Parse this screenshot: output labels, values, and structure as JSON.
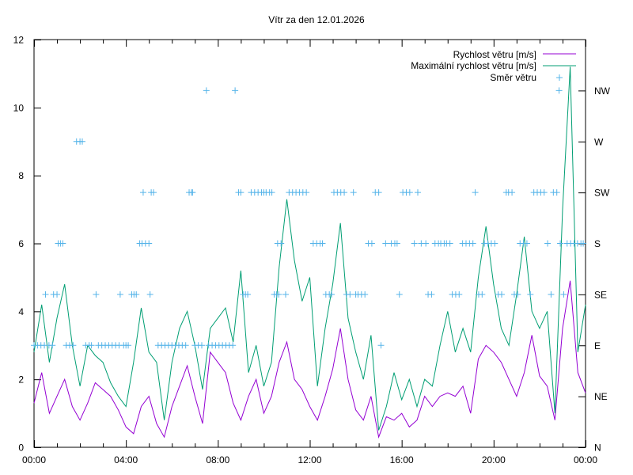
{
  "chart_data": {
    "type": "line",
    "title": "Vítr za den 12.01.2026",
    "xlabel": "",
    "ylabel": "",
    "xlim_hours": [
      0,
      24
    ],
    "ylim": [
      0,
      12
    ],
    "grid": false,
    "legend_placement": "top-right",
    "x_ticks": [
      "00:00",
      "04:00",
      "08:00",
      "12:00",
      "16:00",
      "20:00",
      "00:00"
    ],
    "x_tick_hours": [
      0,
      4,
      8,
      12,
      16,
      20,
      24
    ],
    "y_ticks": [
      "0",
      "2",
      "4",
      "6",
      "8",
      "10",
      "12"
    ],
    "y_tick_values": [
      0,
      2,
      4,
      6,
      8,
      10,
      12
    ],
    "y2_ticks": [
      "N",
      "NE",
      "E",
      "SE",
      "S",
      "SW",
      "W",
      "NW"
    ],
    "y2_tick_values": [
      0,
      1.5,
      3,
      4.5,
      6,
      7.5,
      9,
      10.5
    ],
    "time_step_minutes": 20,
    "series": [
      {
        "name": "Rychlost větru [m/s]",
        "style": "line",
        "color": "#9400d3",
        "values": [
          1.3,
          2.2,
          1.0,
          1.5,
          2.0,
          1.2,
          0.8,
          1.3,
          1.9,
          1.7,
          1.5,
          1.1,
          0.6,
          0.4,
          1.2,
          1.5,
          0.7,
          0.3,
          1.2,
          1.8,
          2.4,
          1.5,
          0.7,
          2.8,
          2.5,
          2.2,
          1.3,
          0.8,
          1.5,
          2.0,
          1.0,
          1.5,
          2.5,
          3.1,
          2.0,
          1.7,
          1.2,
          0.8,
          1.5,
          2.3,
          3.5,
          2.0,
          1.1,
          0.8,
          1.5,
          0.3,
          0.9,
          0.8,
          1.0,
          0.6,
          0.8,
          1.5,
          1.2,
          1.5,
          1.6,
          1.5,
          1.8,
          1.0,
          2.6,
          3.0,
          2.8,
          2.5,
          2.0,
          1.5,
          2.2,
          3.3,
          2.1,
          1.8,
          0.8,
          3.5,
          4.9,
          2.2,
          1.6
        ]
      },
      {
        "name": "Maximální rychlost větru [m/s]",
        "style": "line",
        "color": "#009e73",
        "values": [
          2.8,
          4.2,
          2.5,
          3.8,
          4.8,
          3.0,
          1.8,
          3.0,
          2.7,
          2.5,
          1.9,
          1.5,
          1.2,
          2.5,
          4.1,
          2.8,
          2.5,
          0.8,
          2.5,
          3.5,
          4.0,
          3.0,
          1.7,
          3.5,
          3.8,
          4.1,
          3.1,
          5.2,
          2.2,
          3.0,
          1.8,
          2.5,
          5.3,
          7.3,
          5.5,
          4.3,
          5.0,
          1.8,
          3.5,
          4.8,
          6.6,
          3.8,
          2.8,
          2.0,
          3.3,
          0.5,
          1.2,
          2.2,
          1.4,
          2.0,
          1.2,
          2.0,
          1.8,
          3.0,
          4.0,
          2.8,
          3.5,
          2.8,
          5.0,
          6.5,
          4.8,
          3.5,
          3.0,
          4.5,
          6.2,
          4.0,
          3.5,
          4.0,
          1.0,
          7.0,
          11.2,
          2.8,
          4.2
        ]
      },
      {
        "name": "Směr větru",
        "style": "points",
        "color": "#56b4e9",
        "axis": "y2",
        "points_hours_direction": [
          [
            0.0,
            "E"
          ],
          [
            0.15,
            "E"
          ],
          [
            0.3,
            "E"
          ],
          [
            0.45,
            "E"
          ],
          [
            0.5,
            "SE"
          ],
          [
            0.65,
            "E"
          ],
          [
            0.8,
            "E"
          ],
          [
            0.85,
            "SE"
          ],
          [
            1.0,
            "SE"
          ],
          [
            1.05,
            "S"
          ],
          [
            1.15,
            "S"
          ],
          [
            1.25,
            "S"
          ],
          [
            1.4,
            "E"
          ],
          [
            1.55,
            "E"
          ],
          [
            1.7,
            "E"
          ],
          [
            1.85,
            "W"
          ],
          [
            2.0,
            "W"
          ],
          [
            2.1,
            "W"
          ],
          [
            2.25,
            "E"
          ],
          [
            2.4,
            "E"
          ],
          [
            2.5,
            "E"
          ],
          [
            2.7,
            "SE"
          ],
          [
            2.8,
            "E"
          ],
          [
            2.95,
            "E"
          ],
          [
            3.1,
            "E"
          ],
          [
            3.25,
            "E"
          ],
          [
            3.4,
            "E"
          ],
          [
            3.55,
            "E"
          ],
          [
            3.7,
            "E"
          ],
          [
            3.75,
            "SE"
          ],
          [
            3.9,
            "E"
          ],
          [
            4.0,
            "E"
          ],
          [
            4.1,
            "E"
          ],
          [
            4.25,
            "SE"
          ],
          [
            4.35,
            "SE"
          ],
          [
            4.45,
            "SE"
          ],
          [
            4.6,
            "S"
          ],
          [
            4.7,
            "S"
          ],
          [
            4.75,
            "SW"
          ],
          [
            4.85,
            "S"
          ],
          [
            5.0,
            "S"
          ],
          [
            5.05,
            "SE"
          ],
          [
            5.1,
            "SW"
          ],
          [
            5.2,
            "SW"
          ],
          [
            5.4,
            "E"
          ],
          [
            5.55,
            "E"
          ],
          [
            5.7,
            "E"
          ],
          [
            5.85,
            "E"
          ],
          [
            6.0,
            "E"
          ],
          [
            6.15,
            "E"
          ],
          [
            6.3,
            "E"
          ],
          [
            6.45,
            "E"
          ],
          [
            6.6,
            "E"
          ],
          [
            6.75,
            "SW"
          ],
          [
            6.85,
            "SW"
          ],
          [
            6.9,
            "SW"
          ],
          [
            7.0,
            "E"
          ],
          [
            7.15,
            "E"
          ],
          [
            7.3,
            "E"
          ],
          [
            7.5,
            "NW"
          ],
          [
            7.6,
            "E"
          ],
          [
            7.75,
            "E"
          ],
          [
            7.9,
            "E"
          ],
          [
            8.05,
            "E"
          ],
          [
            8.2,
            "E"
          ],
          [
            8.35,
            "E"
          ],
          [
            8.5,
            "E"
          ],
          [
            8.65,
            "E"
          ],
          [
            8.75,
            "NW"
          ],
          [
            8.9,
            "SW"
          ],
          [
            9.0,
            "SW"
          ],
          [
            9.1,
            "SE"
          ],
          [
            9.2,
            "SE"
          ],
          [
            9.3,
            "SE"
          ],
          [
            9.45,
            "SW"
          ],
          [
            9.6,
            "SW"
          ],
          [
            9.75,
            "SW"
          ],
          [
            9.9,
            "SW"
          ],
          [
            10.0,
            "SW"
          ],
          [
            10.1,
            "SW"
          ],
          [
            10.25,
            "SW"
          ],
          [
            10.35,
            "SW"
          ],
          [
            10.45,
            "SE"
          ],
          [
            10.55,
            "SE"
          ],
          [
            10.6,
            "S"
          ],
          [
            10.65,
            "SE"
          ],
          [
            10.75,
            "S"
          ],
          [
            10.95,
            "SE"
          ],
          [
            11.1,
            "SW"
          ],
          [
            11.25,
            "SW"
          ],
          [
            11.4,
            "SW"
          ],
          [
            11.55,
            "SW"
          ],
          [
            11.7,
            "SW"
          ],
          [
            11.85,
            "SW"
          ],
          [
            12.15,
            "S"
          ],
          [
            12.3,
            "S"
          ],
          [
            12.45,
            "S"
          ],
          [
            12.55,
            "S"
          ],
          [
            12.7,
            "SE"
          ],
          [
            12.85,
            "SE"
          ],
          [
            12.95,
            "SE"
          ],
          [
            13.05,
            "SW"
          ],
          [
            13.2,
            "SW"
          ],
          [
            13.35,
            "SW"
          ],
          [
            13.5,
            "SW"
          ],
          [
            13.6,
            "SE"
          ],
          [
            13.75,
            "SE"
          ],
          [
            13.9,
            "SW"
          ],
          [
            14.0,
            "SE"
          ],
          [
            14.1,
            "SE"
          ],
          [
            14.25,
            "SE"
          ],
          [
            14.4,
            "SE"
          ],
          [
            14.55,
            "S"
          ],
          [
            14.7,
            "S"
          ],
          [
            14.85,
            "SW"
          ],
          [
            15.0,
            "SW"
          ],
          [
            15.1,
            "E"
          ],
          [
            15.3,
            "S"
          ],
          [
            15.55,
            "S"
          ],
          [
            15.7,
            "S"
          ],
          [
            15.8,
            "S"
          ],
          [
            15.9,
            "SE"
          ],
          [
            16.05,
            "SW"
          ],
          [
            16.2,
            "SW"
          ],
          [
            16.35,
            "SW"
          ],
          [
            16.55,
            "S"
          ],
          [
            16.7,
            "SW"
          ],
          [
            16.85,
            "S"
          ],
          [
            17.05,
            "S"
          ],
          [
            17.15,
            "SE"
          ],
          [
            17.3,
            "SE"
          ],
          [
            17.45,
            "S"
          ],
          [
            17.6,
            "S"
          ],
          [
            17.7,
            "S"
          ],
          [
            17.85,
            "S"
          ],
          [
            17.95,
            "S"
          ],
          [
            18.1,
            "S"
          ],
          [
            18.2,
            "SE"
          ],
          [
            18.35,
            "SE"
          ],
          [
            18.5,
            "SE"
          ],
          [
            18.65,
            "S"
          ],
          [
            18.8,
            "S"
          ],
          [
            18.95,
            "S"
          ],
          [
            19.1,
            "S"
          ],
          [
            19.2,
            "SW"
          ],
          [
            19.35,
            "SE"
          ],
          [
            19.5,
            "SE"
          ],
          [
            19.6,
            "S"
          ],
          [
            19.75,
            "S"
          ],
          [
            19.9,
            "S"
          ],
          [
            20.05,
            "S"
          ],
          [
            20.2,
            "SE"
          ],
          [
            20.35,
            "SE"
          ],
          [
            20.55,
            "SW"
          ],
          [
            20.65,
            "SW"
          ],
          [
            20.8,
            "SW"
          ],
          [
            20.9,
            "SE"
          ],
          [
            21.05,
            "SE"
          ],
          [
            21.15,
            "S"
          ],
          [
            21.3,
            "S"
          ],
          [
            21.45,
            "S"
          ],
          [
            21.6,
            "SE"
          ],
          [
            21.75,
            "SW"
          ],
          [
            21.9,
            "SW"
          ],
          [
            22.05,
            "SW"
          ],
          [
            22.2,
            "SW"
          ],
          [
            22.35,
            "S"
          ],
          [
            22.5,
            "SE"
          ],
          [
            22.6,
            "SW"
          ],
          [
            22.75,
            "SW"
          ],
          [
            22.9,
            "S"
          ],
          [
            23.05,
            "SE"
          ],
          [
            23.2,
            "S"
          ],
          [
            23.35,
            "S"
          ],
          [
            23.5,
            "S"
          ],
          [
            23.65,
            "S"
          ],
          [
            23.8,
            "S"
          ],
          [
            23.9,
            "S"
          ],
          [
            22.85,
            "NW"
          ]
        ]
      }
    ]
  },
  "direction_values": {
    "N": 0,
    "NE": 1.5,
    "E": 3,
    "SE": 4.5,
    "S": 6,
    "SW": 7.5,
    "W": 9,
    "NW": 10.5
  }
}
